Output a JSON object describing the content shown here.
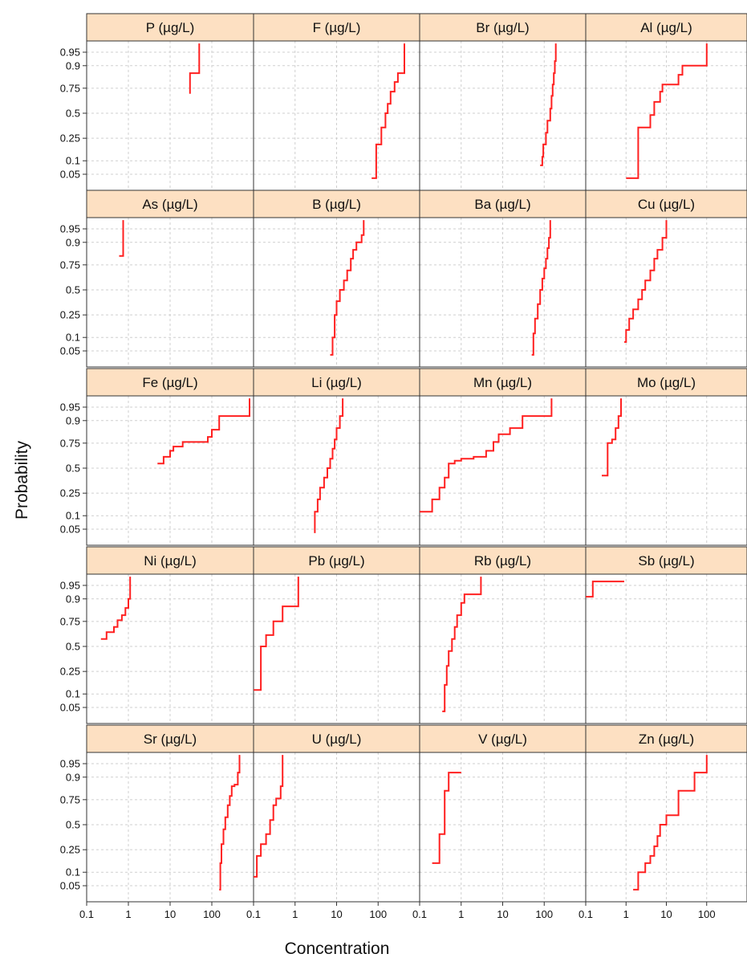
{
  "chart_data": {
    "type": "line",
    "subtype": "empirical cumulative probability plots (step), lattice of 20 panels",
    "xlabel": "Concentration",
    "ylabel": "Probability",
    "x_scale": "log",
    "y_scale": "probit",
    "xlim": [
      0.1,
      1000
    ],
    "x_ticks": [
      0.1,
      1,
      10,
      100
    ],
    "x_tick_labels": [
      "0.1",
      "1",
      "10",
      "100"
    ],
    "y_ticks": [
      0.05,
      0.1,
      0.25,
      0.5,
      0.75,
      0.9,
      0.95
    ],
    "y_tick_labels": [
      "0.05",
      "0.1",
      "0.25",
      "0.5",
      "0.75",
      "0.9",
      "0.95"
    ],
    "grid": true,
    "line_color": "#ff2020",
    "strip_color": "#fde0c2",
    "panels": [
      {
        "title": "P (µg/L)",
        "x": [
          30,
          30,
          50,
          50
        ],
        "y": [
          0.7,
          0.86,
          0.86,
          0.97
        ]
      },
      {
        "title": "F (µg/L)",
        "x": [
          70,
          90,
          90,
          120,
          150,
          170,
          200,
          250,
          300,
          300,
          430,
          430
        ],
        "y": [
          0.04,
          0.04,
          0.2,
          0.35,
          0.5,
          0.6,
          0.72,
          0.8,
          0.86,
          0.86,
          0.92,
          0.97
        ]
      },
      {
        "title": "Br (µg/L)",
        "x": [
          80,
          90,
          95,
          110,
          120,
          140,
          150,
          160,
          170,
          180,
          190
        ],
        "y": [
          0.08,
          0.12,
          0.2,
          0.3,
          0.42,
          0.55,
          0.68,
          0.78,
          0.86,
          0.92,
          0.97
        ]
      },
      {
        "title": "Al (µg/L)",
        "x": [
          1,
          2,
          2,
          3,
          4,
          5,
          7,
          8,
          15,
          20,
          25,
          50,
          100,
          100
        ],
        "y": [
          0.04,
          0.04,
          0.35,
          0.35,
          0.48,
          0.62,
          0.72,
          0.78,
          0.78,
          0.85,
          0.9,
          0.9,
          0.9,
          0.97
        ]
      },
      {
        "title": "As (µg/L)",
        "x": [
          0.6,
          0.75,
          0.75
        ],
        "y": [
          0.82,
          0.82,
          0.97
        ]
      },
      {
        "title": "B (µg/L)",
        "x": [
          7,
          8,
          9,
          10,
          12,
          15,
          18,
          22,
          25,
          30,
          40,
          45
        ],
        "y": [
          0.04,
          0.1,
          0.25,
          0.38,
          0.5,
          0.6,
          0.7,
          0.8,
          0.86,
          0.9,
          0.93,
          0.97
        ]
      },
      {
        "title": "Ba (µg/L)",
        "x": [
          50,
          55,
          60,
          70,
          80,
          90,
          100,
          110,
          120,
          130,
          140
        ],
        "y": [
          0.04,
          0.12,
          0.22,
          0.35,
          0.5,
          0.62,
          0.72,
          0.8,
          0.87,
          0.92,
          0.97
        ]
      },
      {
        "title": "Cu (µg/L)",
        "x": [
          0.9,
          1,
          1.2,
          1.5,
          2,
          2.5,
          3,
          4,
          5,
          6,
          8,
          8,
          10
        ],
        "y": [
          0.08,
          0.14,
          0.22,
          0.3,
          0.4,
          0.5,
          0.6,
          0.7,
          0.8,
          0.86,
          0.86,
          0.92,
          0.97
        ]
      },
      {
        "title": "Fe (µg/L)",
        "x": [
          5,
          7,
          10,
          12,
          15,
          20,
          40,
          60,
          80,
          100,
          150,
          300,
          800,
          800
        ],
        "y": [
          0.55,
          0.62,
          0.68,
          0.72,
          0.72,
          0.76,
          0.76,
          0.76,
          0.8,
          0.85,
          0.92,
          0.92,
          0.92,
          0.97
        ]
      },
      {
        "title": "Li (µg/L)",
        "x": [
          3,
          3,
          3.5,
          4,
          5,
          6,
          7,
          8,
          9,
          10,
          12,
          14
        ],
        "y": [
          0.04,
          0.12,
          0.2,
          0.3,
          0.4,
          0.5,
          0.6,
          0.7,
          0.78,
          0.86,
          0.92,
          0.97
        ]
      },
      {
        "title": "Mn (µg/L)",
        "x": [
          0.1,
          0.2,
          0.2,
          0.3,
          0.4,
          0.5,
          0.7,
          1,
          2,
          4,
          6,
          8,
          15,
          30,
          150,
          150
        ],
        "y": [
          0.12,
          0.12,
          0.2,
          0.3,
          0.4,
          0.55,
          0.58,
          0.6,
          0.62,
          0.68,
          0.76,
          0.82,
          0.86,
          0.92,
          0.92,
          0.97
        ]
      },
      {
        "title": "Mo (µg/L)",
        "x": [
          0.25,
          0.35,
          0.35,
          0.45,
          0.55,
          0.65,
          0.75
        ],
        "y": [
          0.42,
          0.42,
          0.75,
          0.78,
          0.86,
          0.92,
          0.97
        ]
      },
      {
        "title": "Ni (µg/L)",
        "x": [
          0.22,
          0.3,
          0.3,
          0.45,
          0.55,
          0.7,
          0.85,
          1,
          1.1
        ],
        "y": [
          0.58,
          0.58,
          0.65,
          0.7,
          0.76,
          0.8,
          0.85,
          0.9,
          0.97
        ]
      },
      {
        "title": "Pb (µg/L)",
        "x": [
          0.1,
          0.15,
          0.15,
          0.2,
          0.3,
          0.5,
          1,
          1.2,
          1.2
        ],
        "y": [
          0.12,
          0.12,
          0.5,
          0.62,
          0.75,
          0.86,
          0.86,
          0.86,
          0.97
        ]
      },
      {
        "title": "Rb (µg/L)",
        "x": [
          0.35,
          0.4,
          0.45,
          0.5,
          0.6,
          0.7,
          0.8,
          1,
          1.2,
          2,
          3,
          3
        ],
        "y": [
          0.04,
          0.15,
          0.3,
          0.45,
          0.58,
          0.7,
          0.8,
          0.88,
          0.92,
          0.92,
          0.92,
          0.97
        ]
      },
      {
        "title": "Sb (µg/L)",
        "x": [
          0.1,
          0.15,
          0.15,
          0.9
        ],
        "y": [
          0.91,
          0.91,
          0.96,
          0.96
        ]
      },
      {
        "title": "Sr (µg/L)",
        "x": [
          150,
          160,
          170,
          190,
          210,
          240,
          270,
          300,
          350,
          420,
          460
        ],
        "y": [
          0.04,
          0.15,
          0.3,
          0.45,
          0.58,
          0.7,
          0.78,
          0.85,
          0.86,
          0.92,
          0.97
        ]
      },
      {
        "title": "U (µg/L)",
        "x": [
          0.1,
          0.12,
          0.15,
          0.2,
          0.25,
          0.3,
          0.35,
          0.45,
          0.5,
          0.5
        ],
        "y": [
          0.08,
          0.2,
          0.3,
          0.4,
          0.55,
          0.7,
          0.76,
          0.85,
          0.92,
          0.97
        ]
      },
      {
        "title": "V (µg/L)",
        "x": [
          0.2,
          0.3,
          0.3,
          0.4,
          0.4,
          0.5,
          0.5,
          1
        ],
        "y": [
          0.15,
          0.15,
          0.4,
          0.4,
          0.82,
          0.82,
          0.92,
          0.92
        ]
      },
      {
        "title": "Zn (µg/L)",
        "x": [
          1.5,
          2,
          3,
          4,
          5,
          6,
          7,
          10,
          15,
          20,
          30,
          50,
          80,
          100
        ],
        "y": [
          0.04,
          0.1,
          0.15,
          0.2,
          0.28,
          0.38,
          0.5,
          0.6,
          0.6,
          0.82,
          0.82,
          0.92,
          0.92,
          0.97
        ]
      }
    ]
  }
}
